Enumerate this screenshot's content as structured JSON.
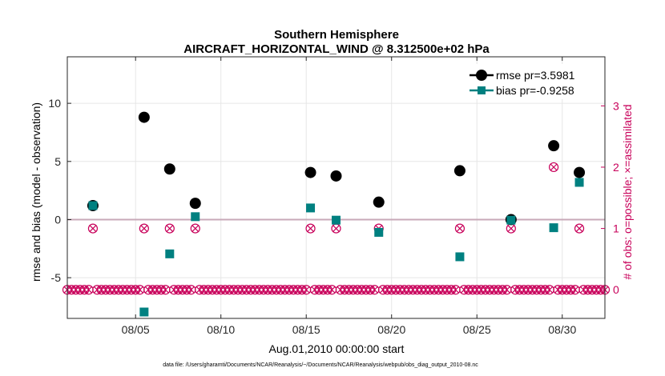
{
  "chart_data": {
    "type": "scatter",
    "title_line1": "Southern Hemisphere",
    "title_line2": "AIRCRAFT_HORIZONTAL_WIND @ 8.312500e+02 hPa",
    "xlabel": "Aug.01,2010 00:00:00 start",
    "ylabel": "rmse and bias (model - observation)",
    "ylabel_right": "# of obs: o=possible; ×=assimilated",
    "footer": "data file: /Users/gharamti/Documents/NCAR/Reanalysis/~/Documents/NCAR/Reanalysis/webpub/obs_diag_output_2010-08.nc",
    "xlim": [
      1.0,
      32.5
    ],
    "ylim": [
      -8.5,
      14
    ],
    "ylim_right": [
      -0.4666667,
      3.8
    ],
    "x_ticks": [
      5,
      10,
      15,
      20,
      25,
      30
    ],
    "x_tick_labels": [
      "08/05",
      "08/10",
      "08/15",
      "08/20",
      "08/25",
      "08/30"
    ],
    "y_ticks": [
      -5,
      0,
      5,
      10
    ],
    "y_tick_labels": [
      "-5",
      "0",
      "5",
      "10"
    ],
    "y_right_ticks": [
      0,
      1,
      2,
      3
    ],
    "y_right_tick_labels": [
      "0",
      "1",
      "2",
      "3"
    ],
    "colors": {
      "rmse": "#000000",
      "bias": "#008080",
      "obs": "#c8005a",
      "zero_line": "#c8a9b8",
      "grid": "#e6e6e6"
    },
    "series": [
      {
        "name": "rmse",
        "legend": "rmse pr=3.5981",
        "x": [
          2.5,
          5.5,
          7.0,
          8.5,
          15.25,
          16.75,
          19.25,
          24.0,
          27.0,
          29.5,
          31.0
        ],
        "values": [
          1.2,
          8.8,
          4.35,
          1.4,
          4.05,
          3.75,
          1.5,
          4.2,
          0.0,
          6.35,
          4.05
        ]
      },
      {
        "name": "bias",
        "legend": "bias pr=-0.9258",
        "x": [
          2.5,
          5.5,
          7.0,
          8.5,
          15.25,
          16.75,
          19.25,
          24.0,
          27.0,
          29.5,
          31.0
        ],
        "values": [
          1.2,
          -7.95,
          -2.95,
          0.25,
          1.0,
          -0.05,
          -1.1,
          -3.2,
          -0.05,
          -0.7,
          3.2
        ]
      },
      {
        "name": "obs_possible",
        "x": [
          2.5,
          5.5,
          7.0,
          8.5,
          15.25,
          16.75,
          19.25,
          24.0,
          27.0,
          29.5,
          31.0
        ],
        "values": [
          1,
          1,
          1,
          1,
          1,
          1,
          1,
          1,
          1,
          2,
          1
        ]
      },
      {
        "name": "obs_assimilated",
        "x": [
          2.5,
          5.5,
          7.0,
          8.5,
          15.25,
          16.75,
          19.25,
          24.0,
          27.0,
          29.5,
          31.0
        ],
        "values": [
          1,
          1,
          1,
          1,
          1,
          1,
          1,
          1,
          1,
          2,
          1
        ]
      }
    ],
    "zero_obs_marker_spacing_days": 0.25
  }
}
